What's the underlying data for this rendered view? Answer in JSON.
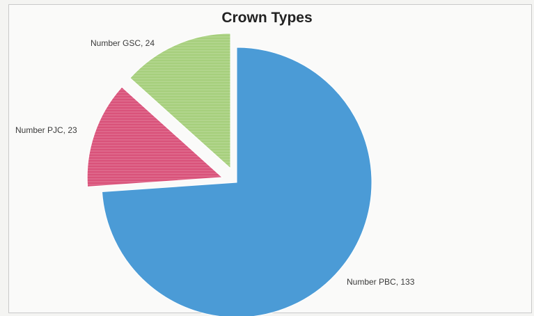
{
  "chart_data": {
    "type": "pie",
    "title": "Crown Types",
    "slices": [
      {
        "name": "Number PBC",
        "value": 133,
        "label": "Number PBC, 133",
        "color": "#4b9bd6",
        "exploded": false
      },
      {
        "name": "Number PJC",
        "value": 23,
        "label": "Number PJC, 23",
        "color": "#d9527a",
        "exploded": true
      },
      {
        "name": "Number GSC",
        "value": 24,
        "label": "Number GSC, 24",
        "color": "#a6cf7c",
        "exploded": true
      }
    ],
    "start_angle": "12 o'clock, clockwise",
    "legend": "none"
  }
}
